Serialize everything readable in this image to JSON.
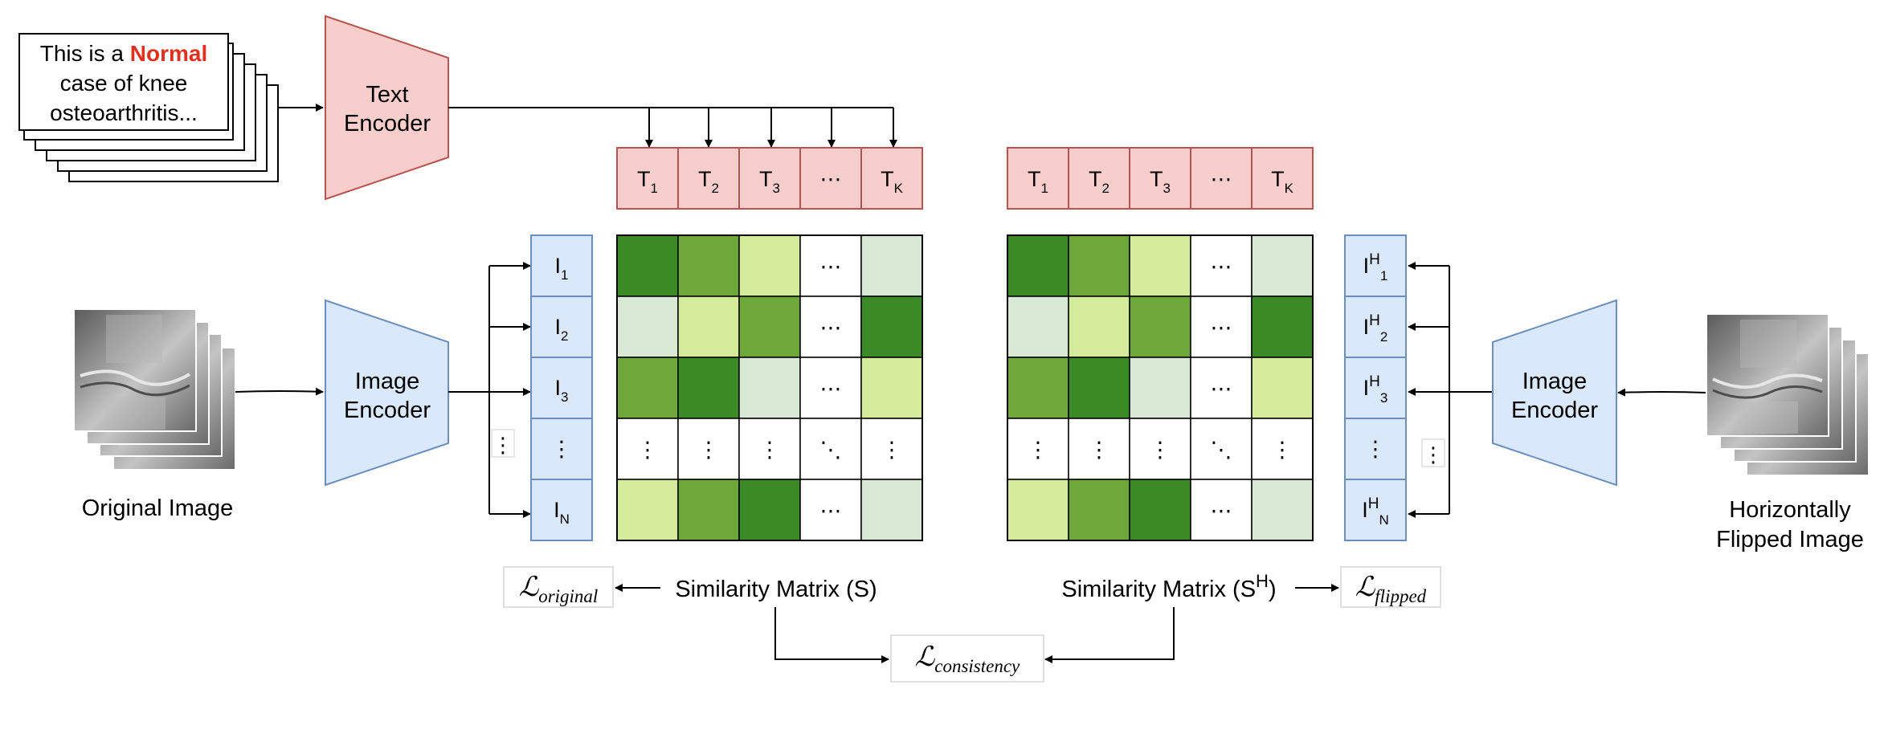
{
  "caption_card": {
    "prefix": "This is a ",
    "highlight": "Normal",
    "line2": "case of knee",
    "line3": "osteoarthritis..."
  },
  "text_encoder": {
    "line1": "Text",
    "line2": "Encoder"
  },
  "image_encoder_left": {
    "line1": "Image",
    "line2": "Encoder"
  },
  "image_encoder_right": {
    "line1": "Image",
    "line2": "Encoder"
  },
  "labels": {
    "original_image": "Original Image",
    "flipped_line1": "Horizontally",
    "flipped_line2": "Flipped Image",
    "sim_left": "Similarity Matrix (S)",
    "sim_right_prefix": "Similarity Matrix (S",
    "sim_right_sup": "H",
    "sim_right_suffix": ")"
  },
  "losses": {
    "original": {
      "symbol": "ℒ",
      "sub": "original"
    },
    "flipped": {
      "symbol": "ℒ",
      "sub": "flipped"
    },
    "consistency": {
      "symbol": "ℒ",
      "sub": "consistency"
    }
  },
  "text_tokens": [
    {
      "base": "T",
      "sub": "1"
    },
    {
      "base": "T",
      "sub": "2"
    },
    {
      "base": "T",
      "sub": "3"
    },
    {
      "base": "⋯",
      "sub": ""
    },
    {
      "base": "T",
      "sub": "K"
    }
  ],
  "image_tokens": [
    {
      "base": "I",
      "sub": "1"
    },
    {
      "base": "I",
      "sub": "2"
    },
    {
      "base": "I",
      "sub": "3"
    },
    {
      "base": "⋮",
      "sub": ""
    },
    {
      "base": "I",
      "sub": "N"
    }
  ],
  "flipped_tokens": [
    {
      "base": "I",
      "sup": "H",
      "sub": "1"
    },
    {
      "base": "I",
      "sup": "H",
      "sub": "2"
    },
    {
      "base": "I",
      "sup": "H",
      "sub": "3"
    },
    {
      "base": "⋮",
      "sup": "",
      "sub": ""
    },
    {
      "base": "I",
      "sup": "H",
      "sub": "N"
    }
  ],
  "colors": {
    "text_fill": "#f8cecc",
    "text_stroke": "#b85450",
    "image_fill": "#dae8fc",
    "image_stroke": "#6c8ebf",
    "highlight": "#e0301e"
  },
  "matrix_palette": {
    "d": "#3a8a26",
    "m": "#6fa83a",
    "l": "#d4eb9c",
    "p": "#d9e8d4",
    "w": "#ffffff"
  },
  "matrix_cells": [
    [
      "d",
      "m",
      "l",
      "w",
      "p"
    ],
    [
      "p",
      "l",
      "m",
      "w",
      "d"
    ],
    [
      "m",
      "d",
      "p",
      "w",
      "l"
    ],
    [
      "w",
      "w",
      "w",
      "w",
      "w"
    ],
    [
      "l",
      "m",
      "d",
      "w",
      "p"
    ]
  ],
  "matrix_glyphs": [
    [
      "",
      "",
      "",
      "⋯",
      ""
    ],
    [
      "",
      "",
      "",
      "⋯",
      ""
    ],
    [
      "",
      "",
      "",
      "⋯",
      ""
    ],
    [
      "⋮",
      "⋮",
      "⋮",
      "⋱",
      "⋮"
    ],
    [
      "",
      "",
      "",
      "⋯",
      ""
    ]
  ],
  "vdots": "⋮"
}
